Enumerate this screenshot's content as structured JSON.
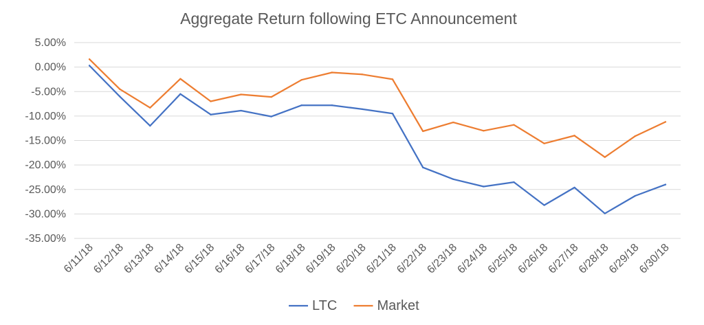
{
  "chart_data": {
    "type": "line",
    "title": "Aggregate Return following ETC Announcement",
    "xlabel": "",
    "ylabel": "",
    "categories": [
      "6/11/18",
      "6/12/18",
      "6/13/18",
      "6/14/18",
      "6/15/18",
      "6/16/18",
      "6/17/18",
      "6/18/18",
      "6/19/18",
      "6/20/18",
      "6/21/18",
      "6/22/18",
      "6/23/18",
      "6/24/18",
      "6/25/18",
      "6/26/18",
      "6/27/18",
      "6/28/18",
      "6/29/18",
      "6/30/18"
    ],
    "ylim": [
      -35,
      5
    ],
    "yticks": [
      5,
      0,
      -5,
      -10,
      -15,
      -20,
      -25,
      -30,
      -35
    ],
    "ytick_labels": [
      "5.00%",
      "0.00%",
      "-5.00%",
      "-10.00%",
      "-15.00%",
      "-20.00%",
      "-25.00%",
      "-30.00%",
      "-35.00%"
    ],
    "grid": true,
    "legend_position": "bottom",
    "series": [
      {
        "name": "LTC",
        "color": "#4472C4",
        "values": [
          0.3,
          -6.0,
          -12.0,
          -5.5,
          -9.7,
          -8.9,
          -10.1,
          -7.8,
          -7.8,
          -8.6,
          -9.5,
          -20.5,
          -22.9,
          -24.4,
          -23.5,
          -28.2,
          -24.6,
          -29.9,
          -26.3,
          -24.0
        ]
      },
      {
        "name": "Market",
        "color": "#ED7D31",
        "values": [
          1.6,
          -4.5,
          -8.3,
          -2.4,
          -7.0,
          -5.6,
          -6.1,
          -2.6,
          -1.1,
          -1.5,
          -2.5,
          -13.1,
          -11.3,
          -13.0,
          -11.8,
          -15.6,
          -14.0,
          -18.4,
          -14.1,
          -11.2
        ]
      }
    ]
  }
}
